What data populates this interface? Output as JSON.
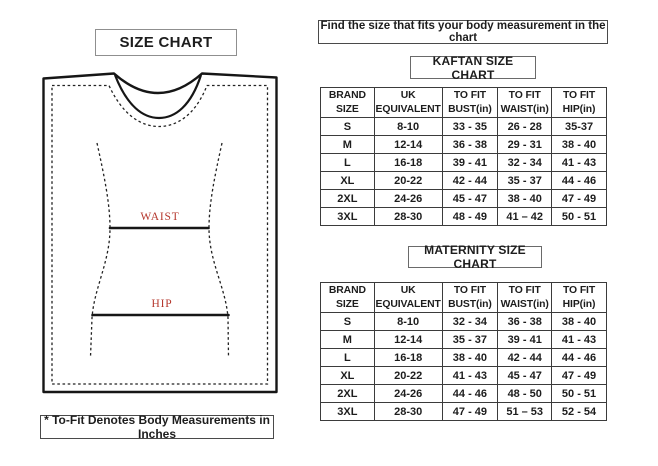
{
  "page": {
    "background": "#ffffff"
  },
  "left_panel": {
    "title": "SIZE CHART",
    "footnote": "* To-Fit Denotes Body Measurements in Inches",
    "diagram": {
      "waist_label": "WAIST",
      "hip_label": "HIP",
      "label_color": "#b5382e",
      "outline_color": "#161616"
    }
  },
  "right_panel": {
    "instruction": "Find the size that fits your body measurement in the chart",
    "tables": [
      {
        "title": "KAFTAN SIZE CHART",
        "columns": [
          "BRAND\nSIZE",
          "UK\nEQUIVALENT",
          "TO FIT\nBUST(in)",
          "TO FIT\nWAIST(in)",
          "TO FIT\nHIP(in)"
        ],
        "rows": [
          [
            "S",
            "8-10",
            "33 - 35",
            "26 - 28",
            "35-37"
          ],
          [
            "M",
            "12-14",
            "36 - 38",
            "29 - 31",
            "38 - 40"
          ],
          [
            "L",
            "16-18",
            "39 - 41",
            "32 - 34",
            "41 - 43"
          ],
          [
            "XL",
            "20-22",
            "42 - 44",
            "35 - 37",
            "44 - 46"
          ],
          [
            "2XL",
            "24-26",
            "45 - 47",
            "38 - 40",
            "47 - 49"
          ],
          [
            "3XL",
            "28-30",
            "48 - 49",
            "41 – 42",
            "50 - 51"
          ]
        ]
      },
      {
        "title": "MATERNITY SIZE CHART",
        "columns": [
          "BRAND\nSIZE",
          "UK\nEQUIVALENT",
          "TO FIT\nBUST(in)",
          "TO FIT\nWAIST(in)",
          "TO FIT\nHIP(in)"
        ],
        "rows": [
          [
            "S",
            "8-10",
            "32 - 34",
            "36 - 38",
            "38 - 40"
          ],
          [
            "M",
            "12-14",
            "35 - 37",
            "39 - 41",
            "41 - 43"
          ],
          [
            "L",
            "16-18",
            "38 - 40",
            "42 - 44",
            "44 - 46"
          ],
          [
            "XL",
            "20-22",
            "41 - 43",
            "45 - 47",
            "47 - 49"
          ],
          [
            "2XL",
            "24-26",
            "44 - 46",
            "48 - 50",
            "50 - 51"
          ],
          [
            "3XL",
            "28-30",
            "47 - 49",
            "51 – 53",
            "52 - 54"
          ]
        ]
      }
    ]
  }
}
